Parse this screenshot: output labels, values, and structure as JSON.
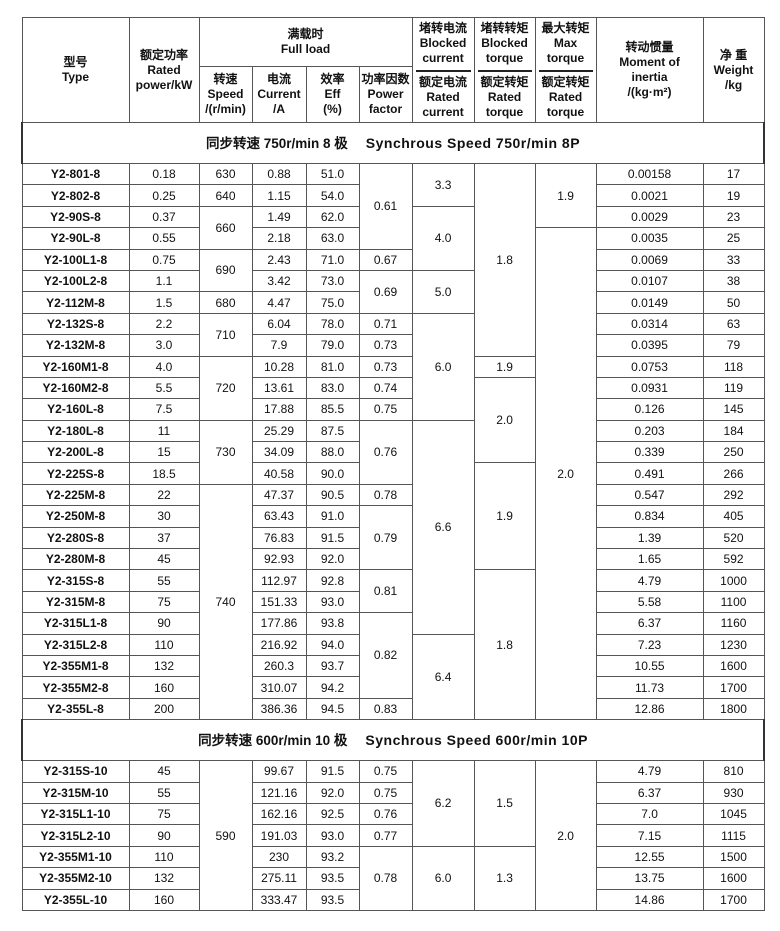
{
  "header": {
    "type": [
      "型号",
      "Type"
    ],
    "rated_power": [
      "额定功率",
      "Rated",
      "power/kW"
    ],
    "full_load": [
      "满载时",
      "Full load"
    ],
    "speed": [
      "转速",
      "Speed",
      "/(r/min)"
    ],
    "current": [
      "电流",
      "Current",
      "/A"
    ],
    "eff": [
      "效率",
      "Eff",
      "(%)"
    ],
    "pf": [
      "功率因数",
      "Power",
      "factor"
    ],
    "blocked_current": {
      "top": [
        "堵转电流",
        "Blocked",
        "current"
      ],
      "bottom": [
        "额定电流",
        "Rated",
        "current"
      ]
    },
    "blocked_torque": {
      "top": [
        "堵转转矩",
        "Blocked",
        "torque"
      ],
      "bottom": [
        "额定转矩",
        "Rated",
        "torque"
      ]
    },
    "max_torque": {
      "top": [
        "最大转矩",
        "Max",
        "torque"
      ],
      "bottom": [
        "额定转矩",
        "Rated",
        "torque"
      ]
    },
    "inertia": [
      "转动惯量",
      "Moment of",
      "inertia",
      "/(kg·m²)"
    ],
    "weight": [
      "净 重",
      "Weight",
      "/kg"
    ]
  },
  "sections": [
    {
      "title_cn": "同步转速 750r/min 8 极",
      "title_en": "Synchrous Speed 750r/min 8P",
      "rows": [
        [
          {
            "v": "Y2-801-8"
          },
          {
            "v": "0.18"
          },
          {
            "v": "630"
          },
          {
            "v": "0.88"
          },
          {
            "v": "51.0"
          },
          {
            "v": "0.61",
            "rows": 4
          },
          {
            "v": "3.3",
            "rows": 2
          },
          {
            "v": "1.8",
            "rows": 9
          },
          {
            "v": "1.9",
            "rows": 3
          },
          {
            "v": "0.00158"
          },
          {
            "v": "17"
          }
        ],
        [
          {
            "v": "Y2-802-8"
          },
          {
            "v": "0.25"
          },
          {
            "v": "640"
          },
          {
            "v": "1.15"
          },
          {
            "v": "54.0"
          },
          {
            "v": "0.0021"
          },
          {
            "v": "19"
          }
        ],
        [
          {
            "v": "Y2-90S-8"
          },
          {
            "v": "0.37"
          },
          {
            "v": "660",
            "rows": 2
          },
          {
            "v": "1.49"
          },
          {
            "v": "62.0"
          },
          {
            "v": "4.0",
            "rows": 3
          },
          {
            "v": "0.0029"
          },
          {
            "v": "23"
          }
        ],
        [
          {
            "v": "Y2-90L-8"
          },
          {
            "v": "0.55"
          },
          {
            "v": "2.18"
          },
          {
            "v": "63.0"
          },
          {
            "v": "2.0",
            "rows": 23
          },
          {
            "v": "0.0035"
          },
          {
            "v": "25"
          }
        ],
        [
          {
            "v": "Y2-100L1-8"
          },
          {
            "v": "0.75"
          },
          {
            "v": "690",
            "rows": 2
          },
          {
            "v": "2.43"
          },
          {
            "v": "71.0"
          },
          {
            "v": "0.67"
          },
          {
            "v": "0.0069"
          },
          {
            "v": "33"
          }
        ],
        [
          {
            "v": "Y2-100L2-8"
          },
          {
            "v": "1.1"
          },
          {
            "v": "3.42"
          },
          {
            "v": "73.0"
          },
          {
            "v": "0.69",
            "rows": 2
          },
          {
            "v": "5.0",
            "rows": 2
          },
          {
            "v": "0.0107"
          },
          {
            "v": "38"
          }
        ],
        [
          {
            "v": "Y2-112M-8"
          },
          {
            "v": "1.5"
          },
          {
            "v": "680"
          },
          {
            "v": "4.47"
          },
          {
            "v": "75.0"
          },
          {
            "v": "0.0149"
          },
          {
            "v": "50"
          }
        ],
        [
          {
            "v": "Y2-132S-8"
          },
          {
            "v": "2.2"
          },
          {
            "v": "710",
            "rows": 2
          },
          {
            "v": "6.04"
          },
          {
            "v": "78.0"
          },
          {
            "v": "0.71"
          },
          {
            "v": "6.0",
            "rows": 5
          },
          {
            "v": "0.0314"
          },
          {
            "v": "63"
          }
        ],
        [
          {
            "v": "Y2-132M-8"
          },
          {
            "v": "3.0"
          },
          {
            "v": "7.9"
          },
          {
            "v": "79.0"
          },
          {
            "v": "0.73"
          },
          {
            "v": "0.0395"
          },
          {
            "v": "79"
          }
        ],
        [
          {
            "v": "Y2-160M1-8"
          },
          {
            "v": "4.0"
          },
          {
            "v": "720",
            "rows": 3
          },
          {
            "v": "10.28"
          },
          {
            "v": "81.0"
          },
          {
            "v": "0.73"
          },
          {
            "v": "1.9"
          },
          {
            "v": "0.0753"
          },
          {
            "v": "118"
          }
        ],
        [
          {
            "v": "Y2-160M2-8"
          },
          {
            "v": "5.5"
          },
          {
            "v": "13.61"
          },
          {
            "v": "83.0"
          },
          {
            "v": "0.74"
          },
          {
            "v": "2.0",
            "rows": 4
          },
          {
            "v": "0.0931"
          },
          {
            "v": "119"
          }
        ],
        [
          {
            "v": "Y2-160L-8"
          },
          {
            "v": "7.5"
          },
          {
            "v": "17.88"
          },
          {
            "v": "85.5"
          },
          {
            "v": "0.75"
          },
          {
            "v": "0.126"
          },
          {
            "v": "145"
          }
        ],
        [
          {
            "v": "Y2-180L-8"
          },
          {
            "v": "11"
          },
          {
            "v": "730",
            "rows": 3
          },
          {
            "v": "25.29"
          },
          {
            "v": "87.5"
          },
          {
            "v": "0.76",
            "rows": 3
          },
          {
            "v": "6.6",
            "rows": 10
          },
          {
            "v": "0.203"
          },
          {
            "v": "184"
          }
        ],
        [
          {
            "v": "Y2-200L-8"
          },
          {
            "v": "15"
          },
          {
            "v": "34.09"
          },
          {
            "v": "88.0"
          },
          {
            "v": "0.339"
          },
          {
            "v": "250"
          }
        ],
        [
          {
            "v": "Y2-225S-8"
          },
          {
            "v": "18.5"
          },
          {
            "v": "40.58"
          },
          {
            "v": "90.0"
          },
          {
            "v": "1.9",
            "rows": 5
          },
          {
            "v": "0.491"
          },
          {
            "v": "266"
          }
        ],
        [
          {
            "v": "Y2-225M-8"
          },
          {
            "v": "22"
          },
          {
            "v": "740",
            "rows": 11
          },
          {
            "v": "47.37"
          },
          {
            "v": "90.5"
          },
          {
            "v": "0.78"
          },
          {
            "v": "0.547"
          },
          {
            "v": "292"
          }
        ],
        [
          {
            "v": "Y2-250M-8"
          },
          {
            "v": "30"
          },
          {
            "v": "63.43"
          },
          {
            "v": "91.0"
          },
          {
            "v": "0.79",
            "rows": 3
          },
          {
            "v": "0.834"
          },
          {
            "v": "405"
          }
        ],
        [
          {
            "v": "Y2-280S-8"
          },
          {
            "v": "37"
          },
          {
            "v": "76.83"
          },
          {
            "v": "91.5"
          },
          {
            "v": "1.39"
          },
          {
            "v": "520"
          }
        ],
        [
          {
            "v": "Y2-280M-8"
          },
          {
            "v": "45"
          },
          {
            "v": "92.93"
          },
          {
            "v": "92.0"
          },
          {
            "v": "1.65"
          },
          {
            "v": "592"
          }
        ],
        [
          {
            "v": "Y2-315S-8"
          },
          {
            "v": "55"
          },
          {
            "v": "112.97"
          },
          {
            "v": "92.8"
          },
          {
            "v": "0.81",
            "rows": 2
          },
          {
            "v": "1.8",
            "rows": 7
          },
          {
            "v": "4.79"
          },
          {
            "v": "1000"
          }
        ],
        [
          {
            "v": "Y2-315M-8"
          },
          {
            "v": "75"
          },
          {
            "v": "151.33"
          },
          {
            "v": "93.0"
          },
          {
            "v": "5.58"
          },
          {
            "v": "1100"
          }
        ],
        [
          {
            "v": "Y2-315L1-8"
          },
          {
            "v": "90"
          },
          {
            "v": "177.86"
          },
          {
            "v": "93.8"
          },
          {
            "v": "0.82",
            "rows": 4
          },
          {
            "v": "6.37"
          },
          {
            "v": "1160"
          }
        ],
        [
          {
            "v": "Y2-315L2-8"
          },
          {
            "v": "110"
          },
          {
            "v": "216.92"
          },
          {
            "v": "94.0"
          },
          {
            "v": "6.4",
            "rows": 4
          },
          {
            "v": "7.23"
          },
          {
            "v": "1230"
          }
        ],
        [
          {
            "v": "Y2-355M1-8"
          },
          {
            "v": "132"
          },
          {
            "v": "260.3"
          },
          {
            "v": "93.7"
          },
          {
            "v": "10.55"
          },
          {
            "v": "1600"
          }
        ],
        [
          {
            "v": "Y2-355M2-8"
          },
          {
            "v": "160"
          },
          {
            "v": "310.07"
          },
          {
            "v": "94.2"
          },
          {
            "v": "11.73"
          },
          {
            "v": "1700"
          }
        ],
        [
          {
            "v": "Y2-355L-8"
          },
          {
            "v": "200"
          },
          {
            "v": "386.36"
          },
          {
            "v": "94.5"
          },
          {
            "v": "0.83"
          },
          {
            "v": "12.86"
          },
          {
            "v": "1800"
          }
        ]
      ]
    },
    {
      "title_cn": "同步转速 600r/min 10 极",
      "title_en": "Synchrous Speed 600r/min 10P",
      "rows": [
        [
          {
            "v": "Y2-315S-10"
          },
          {
            "v": "45"
          },
          {
            "v": "590",
            "rows": 7
          },
          {
            "v": "99.67"
          },
          {
            "v": "91.5"
          },
          {
            "v": "0.75"
          },
          {
            "v": "6.2",
            "rows": 4
          },
          {
            "v": "1.5",
            "rows": 4
          },
          {
            "v": "2.0",
            "rows": 7
          },
          {
            "v": "4.79"
          },
          {
            "v": "810"
          }
        ],
        [
          {
            "v": "Y2-315M-10"
          },
          {
            "v": "55"
          },
          {
            "v": "121.16"
          },
          {
            "v": "92.0"
          },
          {
            "v": "0.75"
          },
          {
            "v": "6.37"
          },
          {
            "v": "930"
          }
        ],
        [
          {
            "v": "Y2-315L1-10"
          },
          {
            "v": "75"
          },
          {
            "v": "162.16"
          },
          {
            "v": "92.5"
          },
          {
            "v": "0.76"
          },
          {
            "v": "7.0"
          },
          {
            "v": "1045"
          }
        ],
        [
          {
            "v": "Y2-315L2-10"
          },
          {
            "v": "90"
          },
          {
            "v": "191.03"
          },
          {
            "v": "93.0"
          },
          {
            "v": "0.77"
          },
          {
            "v": "7.15"
          },
          {
            "v": "1115"
          }
        ],
        [
          {
            "v": "Y2-355M1-10"
          },
          {
            "v": "110"
          },
          {
            "v": "230"
          },
          {
            "v": "93.2"
          },
          {
            "v": "0.78",
            "rows": 3
          },
          {
            "v": "6.0",
            "rows": 3
          },
          {
            "v": "1.3",
            "rows": 3
          },
          {
            "v": "12.55"
          },
          {
            "v": "1500"
          }
        ],
        [
          {
            "v": "Y2-355M2-10"
          },
          {
            "v": "132"
          },
          {
            "v": "275.11"
          },
          {
            "v": "93.5"
          },
          {
            "v": "13.75"
          },
          {
            "v": "1600"
          }
        ],
        [
          {
            "v": "Y2-355L-10"
          },
          {
            "v": "160"
          },
          {
            "v": "333.47"
          },
          {
            "v": "93.5"
          },
          {
            "v": "14.86"
          },
          {
            "v": "1700"
          }
        ]
      ]
    }
  ]
}
